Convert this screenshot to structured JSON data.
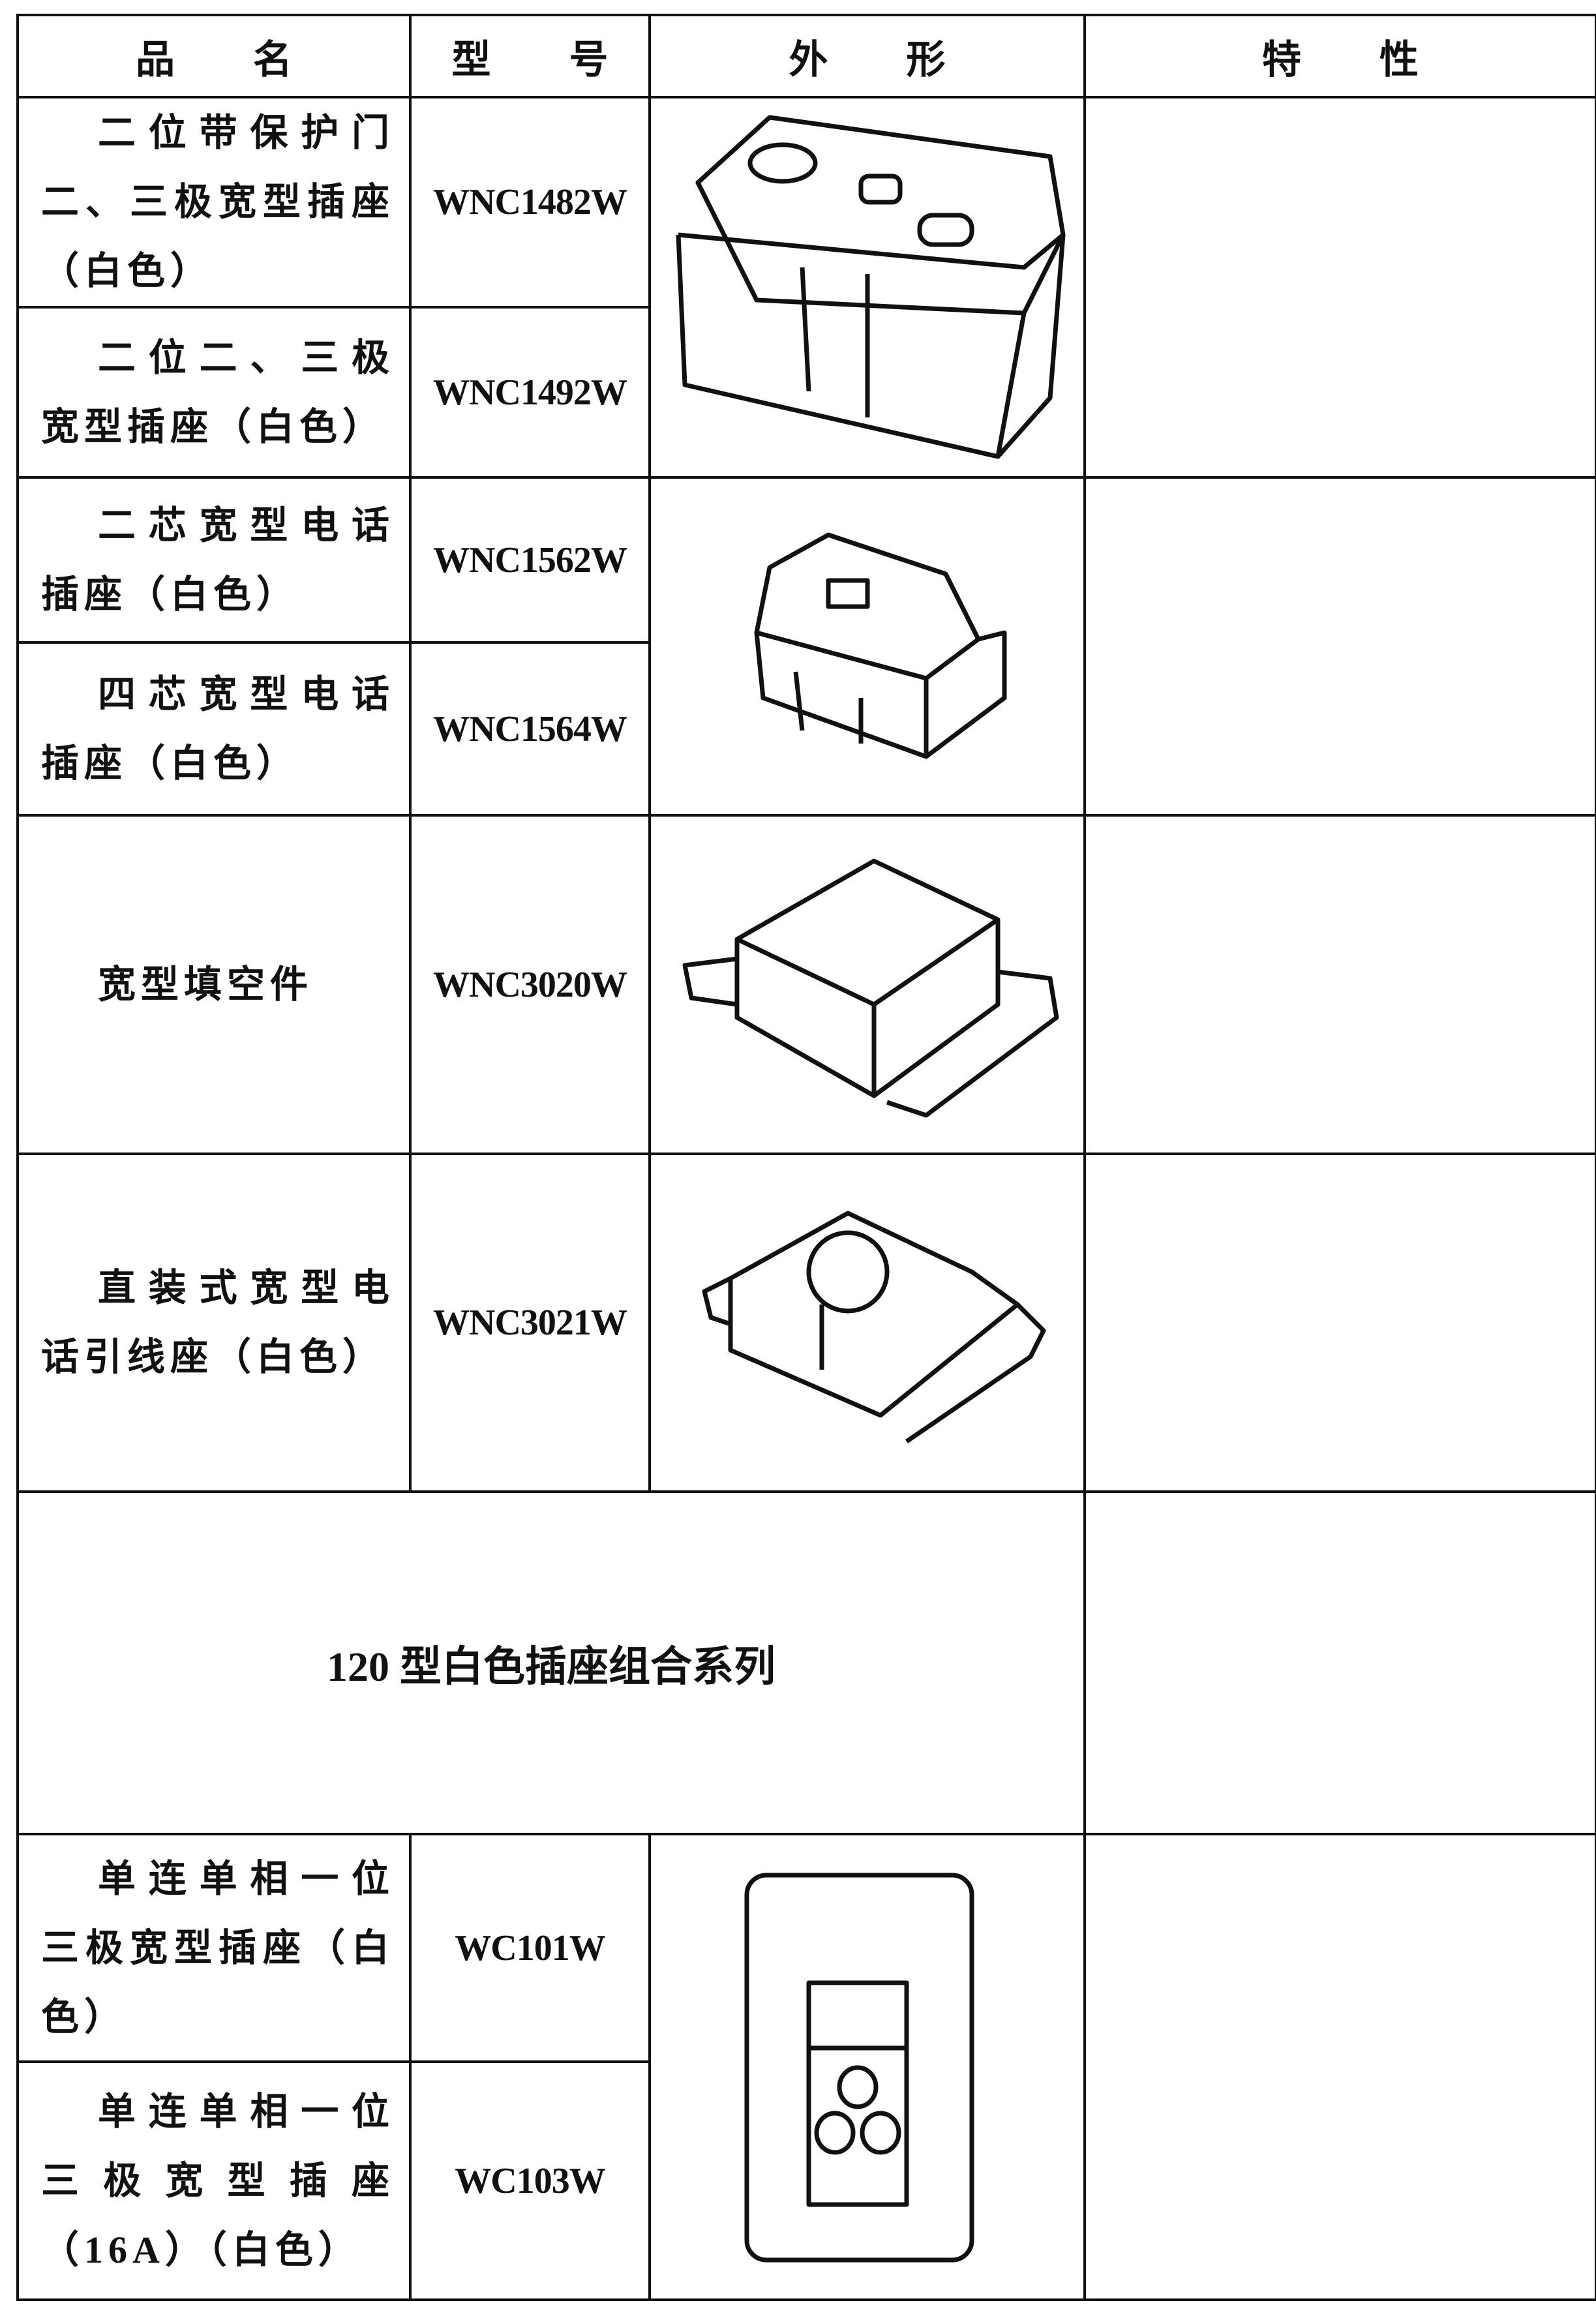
{
  "table": {
    "header": [
      "品　　名",
      "型　　号",
      "外　　形",
      "特　　性"
    ],
    "rows": [
      {
        "name": "二位带保护门二、三极宽型插座（白色）",
        "model": "WNC1482W"
      },
      {
        "name": "二位二、三极宽型插座（白色）",
        "model": "WNC1492W"
      },
      {
        "name": "二芯宽型电话插座（白色）",
        "model": "WNC1562W"
      },
      {
        "name": "四芯宽型电话插座（白色）",
        "model": "WNC1564W"
      },
      {
        "name": "宽型填空件",
        "model": "WNC3020W"
      },
      {
        "name": "直装式宽型电话引线座（白色）",
        "model": "WNC3021W"
      },
      {
        "name": "单连单相一位三极宽型插座（白色）",
        "model": "WC101W"
      },
      {
        "name": "单连单相一位三极宽型插座（16A）（白色）",
        "model": "WC103W"
      }
    ],
    "section": "120 型白色插座组合系列"
  }
}
